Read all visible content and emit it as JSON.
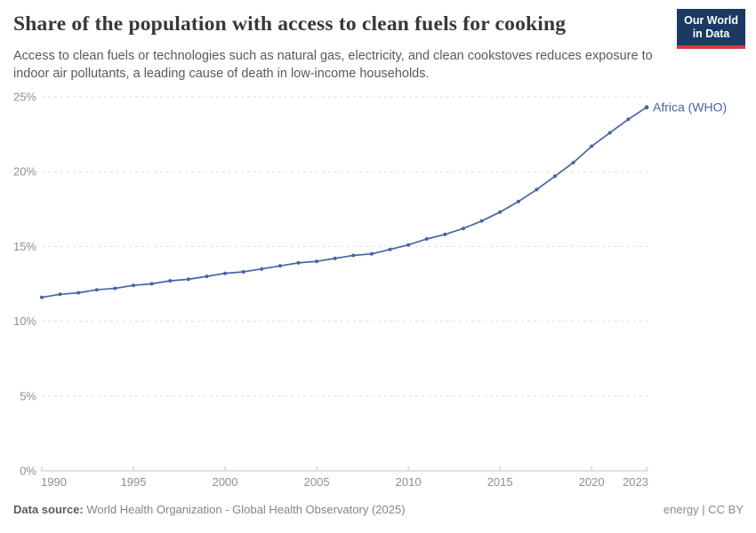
{
  "header": {
    "title": "Share of the population with access to clean fuels for cooking",
    "subtitle": "Access to clean fuels or technologies such as natural gas, electricity, and clean cookstoves reduces exposure to indoor air pollutants, a leading cause of death in low-income households."
  },
  "logo": {
    "line1": "Our World",
    "line2": "in Data",
    "bg_color": "#1a3a63",
    "accent_color": "#d7373f"
  },
  "chart_data": {
    "type": "line",
    "title": "Share of the population with access to clean fuels for cooking",
    "subtitle": "Access to clean fuels or technologies such as natural gas, electricity, and clean cookstoves reduces exposure to indoor air pollutants, a leading cause of death in low-income households.",
    "xlabel": "",
    "ylabel": "",
    "xlim": [
      1990,
      2023
    ],
    "ylim": [
      0,
      25
    ],
    "grid": "dashed horizontal gridlines",
    "legend_position": "label at end of line",
    "xticks": [
      1990,
      1995,
      2000,
      2005,
      2010,
      2015,
      2020,
      2023
    ],
    "xtick_labels": [
      "1990",
      "1995",
      "2000",
      "2005",
      "2010",
      "2015",
      "2020",
      "2023"
    ],
    "yticks": [
      0,
      5,
      10,
      15,
      20,
      25
    ],
    "ytick_labels": [
      "0%",
      "5%",
      "10%",
      "15%",
      "20%",
      "25%"
    ],
    "series": [
      {
        "name": "Africa (WHO)",
        "color": "#4565a5",
        "x": [
          1990,
          1991,
          1992,
          1993,
          1994,
          1995,
          1996,
          1997,
          1998,
          1999,
          2000,
          2001,
          2002,
          2003,
          2004,
          2005,
          2006,
          2007,
          2008,
          2009,
          2010,
          2011,
          2012,
          2013,
          2014,
          2015,
          2016,
          2017,
          2018,
          2019,
          2020,
          2021,
          2022,
          2023
        ],
        "values": [
          11.6,
          11.8,
          11.9,
          12.1,
          12.2,
          12.4,
          12.5,
          12.7,
          12.8,
          13.0,
          13.2,
          13.3,
          13.5,
          13.7,
          13.9,
          14.0,
          14.2,
          14.4,
          14.5,
          14.8,
          15.1,
          15.5,
          15.8,
          16.2,
          16.7,
          17.3,
          18.0,
          18.8,
          19.7,
          20.6,
          21.7,
          22.6,
          23.5,
          24.3
        ]
      }
    ],
    "colors": {
      "line": "#4565a5",
      "grid": "#dddddd",
      "axis": "#c4c4c4",
      "tick_label": "#8f8f8f"
    }
  },
  "footer": {
    "datasource_label": "Data source:",
    "datasource_text": "World Health Organization - Global Health Observatory (2025)",
    "license_text": "energy | CC BY"
  }
}
